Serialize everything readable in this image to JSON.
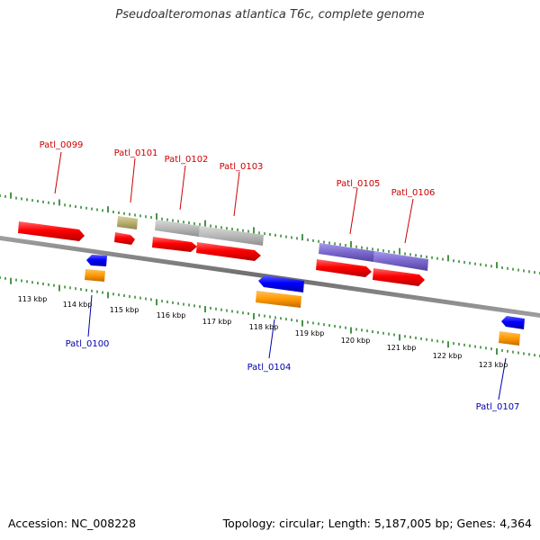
{
  "title": "Pseudoalteromonas atlantica T6c, complete genome",
  "footer": {
    "accession": "Accession: NC_008228",
    "summary": "Topology: circular; Length: 5,187,005 bp; Genes: 4,364"
  },
  "colors": {
    "backbone": "#808080",
    "ticks": "#1a7a1a",
    "cds": "#ff0000",
    "top_label": "#cc0000",
    "bottom_label": "#0000aa",
    "blue_feature": "#0000ff",
    "orange_feature": "#ff9900",
    "olive_feature": "#b8b070",
    "gray_feature": "#b8b8b8",
    "purple_feature": "#7b68cc"
  },
  "scale_labels": [
    "113 kbp",
    "114 kbp",
    "115 kbp",
    "116 kbp",
    "117 kbp",
    "118 kbp",
    "119 kbp",
    "120 kbp",
    "121 kbp",
    "122 kbp",
    "123 kbp"
  ],
  "top_labels": [
    "Patl_0099",
    "Patl_0101",
    "Patl_0102",
    "Patl_0103",
    "Patl_0105",
    "Patl_0106"
  ],
  "bottom_labels": [
    "Patl_0100",
    "Patl_0104",
    "Patl_0107"
  ]
}
